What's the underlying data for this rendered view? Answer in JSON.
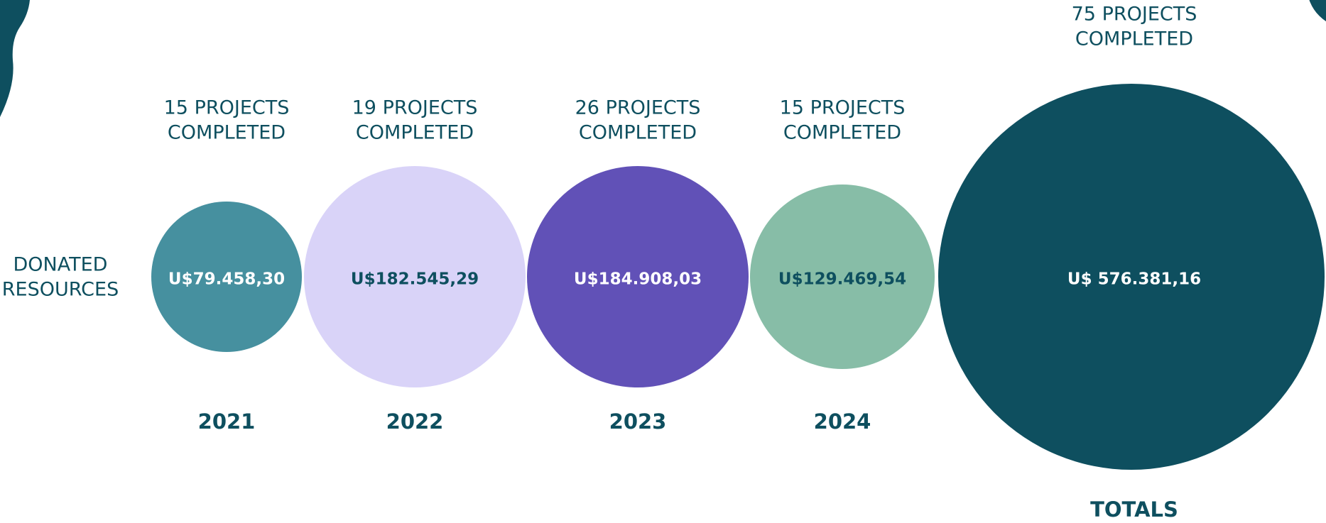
{
  "row_label": [
    "DONATED",
    "RESOURCES"
  ],
  "years": [
    {
      "projects": [
        "15 PROJECTS",
        "COMPLETED"
      ],
      "amount": "U$79.458,30",
      "year": "2021"
    },
    {
      "projects": [
        "19 PROJECTS",
        "COMPLETED"
      ],
      "amount": "U$182.545,29",
      "year": "2022"
    },
    {
      "projects": [
        "26 PROJECTS",
        "COMPLETED"
      ],
      "amount": "U$184.908,03",
      "year": "2023"
    },
    {
      "projects": [
        "15 PROJECTS",
        "COMPLETED"
      ],
      "amount": "U$129.469,54",
      "year": "2024"
    }
  ],
  "totals": {
    "projects": [
      "75 PROJECTS",
      "COMPLETED"
    ],
    "amount": "U$ 576.381,16",
    "label": "TOTALS"
  }
}
